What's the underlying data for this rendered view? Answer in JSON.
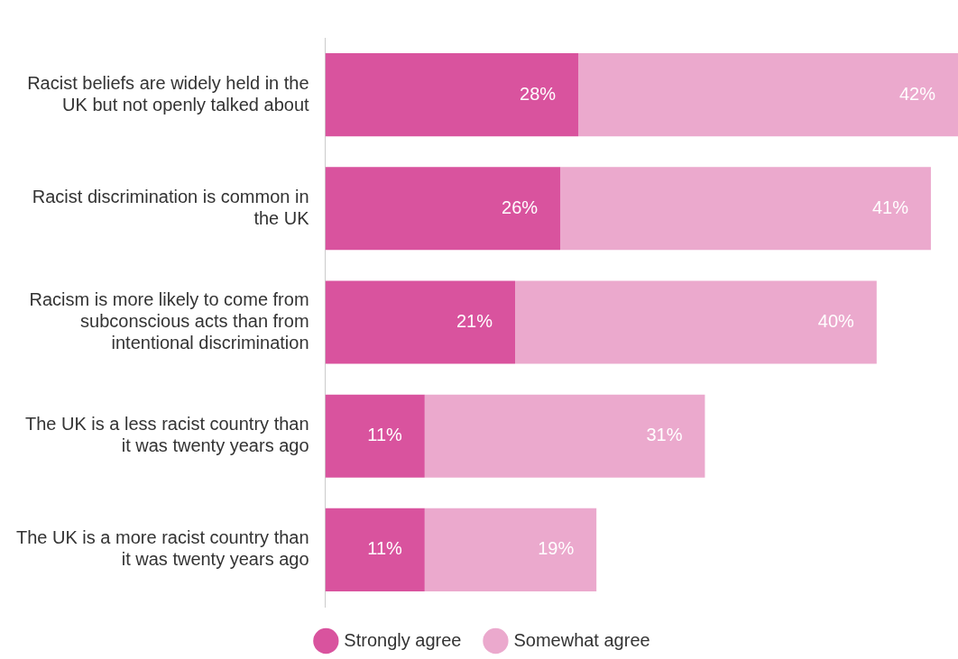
{
  "chart_data": {
    "type": "bar",
    "orientation": "horizontal",
    "stacked": true,
    "legend": "bottom",
    "tick_labels": "y",
    "categories": [
      "Racist beliefs are widely held in the UK but not openly talked about",
      "Racist discrimination is common in the UK",
      "Racism is more likely to come from subconscious acts than from intentional discrimination",
      "The UK is a less racist country than it was twenty years ago",
      "The UK is a more racist country than it was twenty years ago"
    ],
    "series": [
      {
        "name": "Strongly agree",
        "color": "#d9539e",
        "values": [
          28,
          26,
          21,
          11,
          11
        ],
        "value_labels": [
          "28%",
          "26%",
          "21%",
          "11%",
          "11%"
        ]
      },
      {
        "name": "Somewhat agree",
        "color": "#eba9cd",
        "values": [
          42,
          41,
          40,
          31,
          19
        ],
        "value_labels": [
          "42%",
          "41%",
          "40%",
          "31%",
          "19%"
        ]
      }
    ]
  }
}
